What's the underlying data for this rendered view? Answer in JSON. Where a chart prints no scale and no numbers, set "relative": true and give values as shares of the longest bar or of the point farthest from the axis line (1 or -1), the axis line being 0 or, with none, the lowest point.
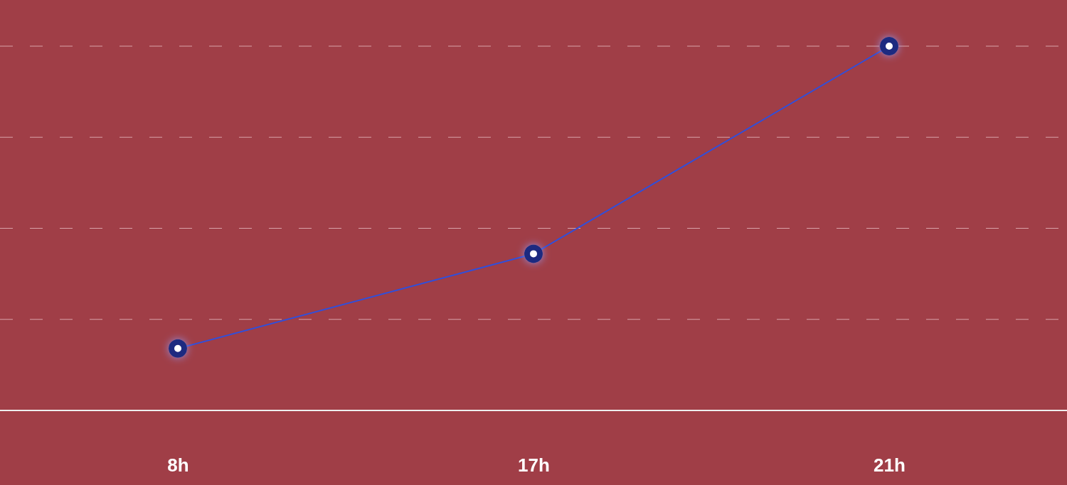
{
  "chart_data": {
    "type": "line",
    "relative": true,
    "categories": [
      "8h",
      "17h",
      "21h"
    ],
    "series": [
      {
        "color": "#2f4fdc",
        "values": [
          0.17,
          0.43,
          1
        ]
      }
    ],
    "ref_lines": [
      {
        "axis": "y",
        "value": 0.25,
        "color": "#d9a3a8",
        "line_style": "dashed"
      },
      {
        "axis": "y",
        "value": 0.5,
        "color": "#d9a3a8",
        "line_style": "dashed"
      },
      {
        "axis": "y",
        "value": 0.75,
        "color": "#d9a3a8",
        "line_style": "dashed"
      },
      {
        "axis": "y",
        "value": 1,
        "color": "#d9a3a8",
        "line_style": "dashed"
      }
    ],
    "marker": "circle",
    "line_style": "solid"
  }
}
